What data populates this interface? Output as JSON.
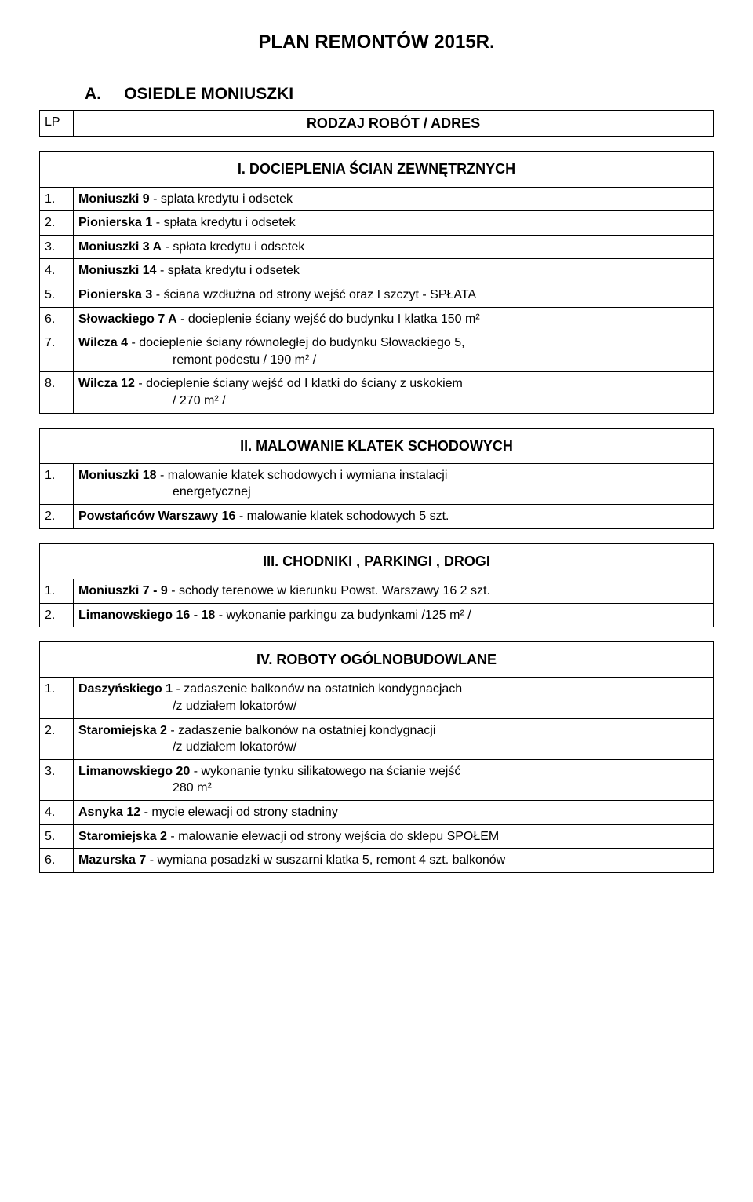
{
  "title": "PLAN REMONTÓW 2015R.",
  "section": {
    "label": "A.",
    "name": "OSIEDLE MONIUSZKI"
  },
  "table_header": {
    "col1": "LP",
    "col2": "RODZAJ  ROBÓT / ADRES"
  },
  "groups": [
    {
      "heading": "I.  DOCIEPLENIA ŚCIAN  ZEWNĘTRZNYCH",
      "rows": [
        {
          "n": "1.",
          "bold": "Moniuszki 9",
          "rest": " - spłata kredytu i odsetek"
        },
        {
          "n": "2.",
          "bold": "Pionierska 1",
          "rest": " - spłata kredytu i odsetek"
        },
        {
          "n": "3.",
          "bold": "Moniuszki 3 A",
          "rest": " - spłata kredytu i odsetek"
        },
        {
          "n": "4.",
          "bold": "Moniuszki  14",
          "rest": " - spłata kredytu i odsetek"
        },
        {
          "n": "5.",
          "bold": "Pionierska 3",
          "rest": " - ściana wzdłużna od strony wejść oraz I szczyt - SPŁATA"
        },
        {
          "n": "6.",
          "bold": "Słowackiego 7 A",
          "rest": " -  docieplenie  ściany   wejść do budynku  I klatka  150 m²"
        },
        {
          "n": "7.",
          "bold": "Wilcza 4",
          "rest": " - docieplenie ściany  równoległej  do  budynku  Słowackiego 5,",
          "line2": "remont podestu / 190 m² /"
        },
        {
          "n": "8.",
          "bold": "Wilcza 12",
          "rest": " -  docieplenie ściany wejść  od I klatki do ściany  z uskokiem",
          "line2": "/ 270 m² /"
        }
      ]
    },
    {
      "heading": "II.  MALOWANIE KLATEK SCHODOWYCH",
      "rows": [
        {
          "n": "1.",
          "bold": "Moniuszki 18",
          "rest": " - malowanie klatek schodowych i wymiana instalacji",
          "line2": "energetycznej"
        },
        {
          "n": "2.",
          "bold": "Powstańców Warszawy 16",
          "rest": " - malowanie klatek schodowych   5 szt."
        }
      ]
    },
    {
      "heading": "III.  CHODNIKI ,  PARKINGI ,  DROGI",
      "rows": [
        {
          "n": "1.",
          "bold": "Moniuszki 7 - 9",
          "rest": " - schody terenowe w kierunku Powst. Warszawy 16  2 szt."
        },
        {
          "n": "2.",
          "bold": "Limanowskiego 16 - 18",
          "rest": " - wykonanie parkingu za budynkami   /125 m² /"
        }
      ]
    },
    {
      "heading": "IV.     ROBOTY  OGÓLNOBUDOWLANE",
      "rows": [
        {
          "n": "1.",
          "bold": "Daszyńskiego 1",
          "rest": " - zadaszenie balkonów na ostatnich kondygnacjach",
          "line2": "/z udziałem lokatorów/"
        },
        {
          "n": "2.",
          "bold": "Staromiejska 2",
          "rest": " - zadaszenie balkonów na ostatniej kondygnacji",
          "line2": "/z udziałem lokatorów/"
        },
        {
          "n": "3.",
          "bold": "Limanowskiego 20",
          "rest": " - wykonanie tynku silikatowego na ścianie wejść",
          "line2": "280 m²"
        },
        {
          "n": "4.",
          "bold": "Asnyka 12",
          "rest": " - mycie elewacji od strony stadniny"
        },
        {
          "n": "5.",
          "bold": "Staromiejska 2",
          "rest": " -  malowanie  elewacji od strony wejścia do sklepu SPOŁEM"
        },
        {
          "n": "6.",
          "bold": "Mazurska 7",
          "rest": " - wymiana posadzki w suszarni klatka 5, remont 4 szt. balkonów"
        }
      ]
    }
  ]
}
